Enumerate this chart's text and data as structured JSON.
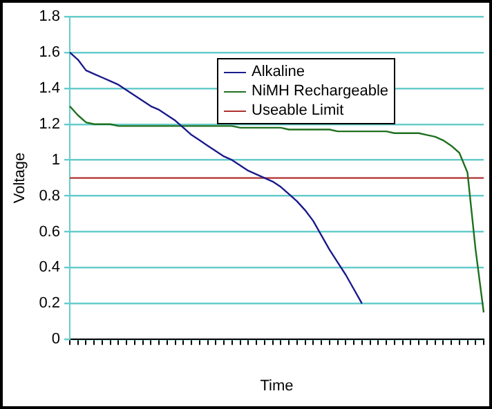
{
  "chart_data": {
    "type": "line",
    "xlabel": "Time",
    "ylabel": "Voltage",
    "categories": [
      null,
      null,
      null,
      null,
      null,
      null,
      null,
      null,
      null,
      null,
      null,
      null,
      null,
      null,
      null,
      null,
      null,
      null,
      null,
      null,
      null,
      null,
      null,
      null,
      null,
      null,
      null,
      null,
      null,
      null,
      null,
      null,
      null,
      null,
      null,
      null,
      null,
      null,
      null,
      null,
      null,
      null,
      null,
      null,
      null,
      null,
      null,
      null,
      null,
      null,
      null,
      null
    ],
    "series": [
      {
        "name": "Alkaline",
        "color": "#1a1a8c",
        "values": [
          1.6,
          1.56,
          1.5,
          1.48,
          1.46,
          1.44,
          1.42,
          1.39,
          1.36,
          1.33,
          1.3,
          1.28,
          1.25,
          1.22,
          1.18,
          1.14,
          1.11,
          1.08,
          1.05,
          1.02,
          1.0,
          0.97,
          0.94,
          0.92,
          0.9,
          0.88,
          0.85,
          0.81,
          0.77,
          0.72,
          0.66,
          0.58,
          0.5,
          0.43,
          0.36,
          0.28,
          0.2,
          null,
          null,
          null,
          null,
          null,
          null,
          null,
          null,
          null,
          null,
          null,
          null,
          null,
          null,
          null
        ]
      },
      {
        "name": "NiMH Rechargeable",
        "color": "#1f6f1f",
        "values": [
          1.3,
          1.25,
          1.21,
          1.2,
          1.2,
          1.2,
          1.19,
          1.19,
          1.19,
          1.19,
          1.19,
          1.19,
          1.19,
          1.19,
          1.19,
          1.19,
          1.19,
          1.19,
          1.19,
          1.19,
          1.19,
          1.18,
          1.18,
          1.18,
          1.18,
          1.18,
          1.18,
          1.17,
          1.17,
          1.17,
          1.17,
          1.17,
          1.17,
          1.16,
          1.16,
          1.16,
          1.16,
          1.16,
          1.16,
          1.16,
          1.15,
          1.15,
          1.15,
          1.15,
          1.14,
          1.13,
          1.11,
          1.08,
          1.04,
          0.93,
          0.5,
          0.15
        ]
      },
      {
        "name": "Useable Limit",
        "color": "#b03030",
        "values": [
          0.9,
          0.9,
          0.9,
          0.9,
          0.9,
          0.9,
          0.9,
          0.9,
          0.9,
          0.9,
          0.9,
          0.9,
          0.9,
          0.9,
          0.9,
          0.9,
          0.9,
          0.9,
          0.9,
          0.9,
          0.9,
          0.9,
          0.9,
          0.9,
          0.9,
          0.9,
          0.9,
          0.9,
          0.9,
          0.9,
          0.9,
          0.9,
          0.9,
          0.9,
          0.9,
          0.9,
          0.9,
          0.9,
          0.9,
          0.9,
          0.9,
          0.9,
          0.9,
          0.9,
          0.9,
          0.9,
          0.9,
          0.9,
          0.9,
          0.9,
          0.9,
          0.9
        ]
      }
    ],
    "ylim": [
      0,
      1.8
    ],
    "yticks": [
      0,
      0.2,
      0.4,
      0.6,
      0.8,
      1,
      1.2,
      1.4,
      1.6,
      1.8
    ],
    "grid": "y",
    "legend": "top",
    "marker": "none",
    "line_style": "solid"
  }
}
